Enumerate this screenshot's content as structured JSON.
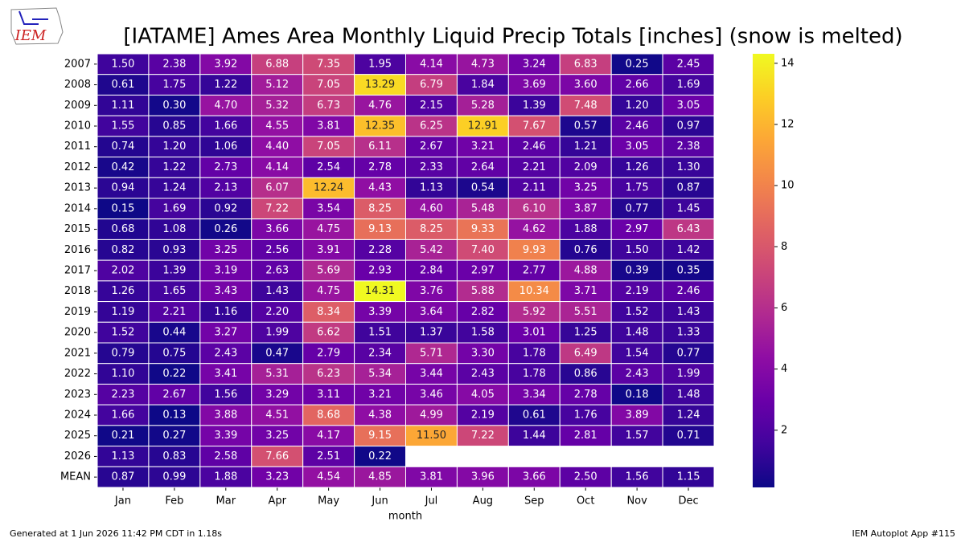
{
  "logo_text": "IEM",
  "footer_left": "Generated at 1 Jun 2026 11:42 PM CDT in 1.18s",
  "footer_right": "IEM Autoplot App #115",
  "chart_data": {
    "type": "heatmap",
    "title": "[IATAME] Ames Area Monthly Liquid Precip Totals [inches] (snow is melted)",
    "x_label": "month",
    "categories": [
      "Jan",
      "Feb",
      "Mar",
      "Apr",
      "May",
      "Jun",
      "Jul",
      "Aug",
      "Sep",
      "Oct",
      "Nov",
      "Dec"
    ],
    "colormap": "plasma",
    "zlim": [
      0.13,
      14.31
    ],
    "zticks": [
      2,
      4,
      6,
      8,
      10,
      12,
      14
    ],
    "series": [
      {
        "name": "2007",
        "values": [
          1.5,
          2.38,
          3.92,
          6.88,
          7.35,
          1.95,
          4.14,
          4.73,
          3.24,
          6.83,
          0.25,
          2.45
        ],
        "value_labels": [
          "1.50",
          "2.38",
          "3.92",
          "6.88",
          "7.35",
          "1.95",
          "4.14",
          "4.73",
          "3.24",
          "6.83",
          "0.25",
          "2.45"
        ]
      },
      {
        "name": "2008",
        "values": [
          0.61,
          1.75,
          1.22,
          5.12,
          7.05,
          13.29,
          6.79,
          1.84,
          3.69,
          3.6,
          2.66,
          1.69
        ],
        "value_labels": [
          "0.61",
          "1.75",
          "1.22",
          "5.12",
          "7.05",
          "13.29",
          "6.79",
          "1.84",
          "3.69",
          "3.60",
          "2.66",
          "1.69"
        ]
      },
      {
        "name": "2009",
        "values": [
          1.11,
          0.3,
          4.7,
          5.32,
          6.73,
          4.76,
          2.15,
          5.28,
          1.39,
          7.48,
          1.2,
          3.05
        ],
        "value_labels": [
          "1.11",
          "0.30",
          "4.70",
          "5.32",
          "6.73",
          "4.76",
          "2.15",
          "5.28",
          "1.39",
          "7.48",
          "1.20",
          "3.05"
        ]
      },
      {
        "name": "2010",
        "values": [
          1.55,
          0.85,
          1.66,
          4.55,
          3.81,
          12.35,
          6.25,
          12.91,
          7.67,
          0.57,
          2.46,
          0.97
        ],
        "value_labels": [
          "1.55",
          "0.85",
          "1.66",
          "4.55",
          "3.81",
          "12.35",
          "6.25",
          "12.91",
          "7.67",
          "0.57",
          "2.46",
          "0.97"
        ]
      },
      {
        "name": "2011",
        "values": [
          0.74,
          1.2,
          1.06,
          4.4,
          7.05,
          6.11,
          2.67,
          3.21,
          2.46,
          1.21,
          3.05,
          2.38
        ],
        "value_labels": [
          "0.74",
          "1.20",
          "1.06",
          "4.40",
          "7.05",
          "6.11",
          "2.67",
          "3.21",
          "2.46",
          "1.21",
          "3.05",
          "2.38"
        ]
      },
      {
        "name": "2012",
        "values": [
          0.42,
          1.22,
          2.73,
          4.14,
          2.54,
          2.78,
          2.33,
          2.64,
          2.21,
          2.09,
          1.26,
          1.3
        ],
        "value_labels": [
          "0.42",
          "1.22",
          "2.73",
          "4.14",
          "2.54",
          "2.78",
          "2.33",
          "2.64",
          "2.21",
          "2.09",
          "1.26",
          "1.30"
        ]
      },
      {
        "name": "2013",
        "values": [
          0.94,
          1.24,
          2.13,
          6.07,
          12.24,
          4.43,
          1.13,
          0.54,
          2.11,
          3.25,
          1.75,
          0.87
        ],
        "value_labels": [
          "0.94",
          "1.24",
          "2.13",
          "6.07",
          "12.24",
          "4.43",
          "1.13",
          "0.54",
          "2.11",
          "3.25",
          "1.75",
          "0.87"
        ]
      },
      {
        "name": "2014",
        "values": [
          0.15,
          1.69,
          0.92,
          7.22,
          3.54,
          8.25,
          4.6,
          5.48,
          6.1,
          3.87,
          0.77,
          1.45
        ],
        "value_labels": [
          "0.15",
          "1.69",
          "0.92",
          "7.22",
          "3.54",
          "8.25",
          "4.60",
          "5.48",
          "6.10",
          "3.87",
          "0.77",
          "1.45"
        ]
      },
      {
        "name": "2015",
        "values": [
          0.68,
          1.08,
          0.26,
          3.66,
          4.75,
          9.13,
          8.25,
          9.33,
          4.62,
          1.88,
          2.97,
          6.43
        ],
        "value_labels": [
          "0.68",
          "1.08",
          "0.26",
          "3.66",
          "4.75",
          "9.13",
          "8.25",
          "9.33",
          "4.62",
          "1.88",
          "2.97",
          "6.43"
        ]
      },
      {
        "name": "2016",
        "values": [
          0.82,
          0.93,
          3.25,
          2.56,
          3.91,
          2.28,
          5.42,
          7.4,
          9.93,
          0.76,
          1.5,
          1.42
        ],
        "value_labels": [
          "0.82",
          "0.93",
          "3.25",
          "2.56",
          "3.91",
          "2.28",
          "5.42",
          "7.40",
          "9.93",
          "0.76",
          "1.50",
          "1.42"
        ]
      },
      {
        "name": "2017",
        "values": [
          2.02,
          1.39,
          3.19,
          2.63,
          5.69,
          2.93,
          2.84,
          2.97,
          2.77,
          4.88,
          0.39,
          0.35
        ],
        "value_labels": [
          "2.02",
          "1.39",
          "3.19",
          "2.63",
          "5.69",
          "2.93",
          "2.84",
          "2.97",
          "2.77",
          "4.88",
          "0.39",
          "0.35"
        ]
      },
      {
        "name": "2018",
        "values": [
          1.26,
          1.65,
          3.43,
          1.43,
          4.75,
          14.31,
          3.76,
          5.88,
          10.34,
          3.71,
          2.19,
          2.46
        ],
        "value_labels": [
          "1.26",
          "1.65",
          "3.43",
          "1.43",
          "4.75",
          "14.31",
          "3.76",
          "5.88",
          "10.34",
          "3.71",
          "2.19",
          "2.46"
        ]
      },
      {
        "name": "2019",
        "values": [
          1.19,
          2.21,
          1.16,
          2.2,
          8.34,
          3.39,
          3.64,
          2.82,
          5.92,
          5.51,
          1.52,
          1.43
        ],
        "value_labels": [
          "1.19",
          "2.21",
          "1.16",
          "2.20",
          "8.34",
          "3.39",
          "3.64",
          "2.82",
          "5.92",
          "5.51",
          "1.52",
          "1.43"
        ]
      },
      {
        "name": "2020",
        "values": [
          1.52,
          0.44,
          3.27,
          1.99,
          6.62,
          1.51,
          1.37,
          1.58,
          3.01,
          1.25,
          1.48,
          1.33
        ],
        "value_labels": [
          "1.52",
          "0.44",
          "3.27",
          "1.99",
          "6.62",
          "1.51",
          "1.37",
          "1.58",
          "3.01",
          "1.25",
          "1.48",
          "1.33"
        ]
      },
      {
        "name": "2021",
        "values": [
          0.79,
          0.75,
          2.43,
          0.47,
          2.79,
          2.34,
          5.71,
          3.3,
          1.78,
          6.49,
          1.54,
          0.77
        ],
        "value_labels": [
          "0.79",
          "0.75",
          "2.43",
          "0.47",
          "2.79",
          "2.34",
          "5.71",
          "3.30",
          "1.78",
          "6.49",
          "1.54",
          "0.77"
        ]
      },
      {
        "name": "2022",
        "values": [
          1.1,
          0.22,
          3.41,
          5.31,
          6.23,
          5.34,
          3.44,
          2.43,
          1.78,
          0.86,
          2.43,
          1.99
        ],
        "value_labels": [
          "1.10",
          "0.22",
          "3.41",
          "5.31",
          "6.23",
          "5.34",
          "3.44",
          "2.43",
          "1.78",
          "0.86",
          "2.43",
          "1.99"
        ]
      },
      {
        "name": "2023",
        "values": [
          2.23,
          2.67,
          1.56,
          3.29,
          3.11,
          3.21,
          3.46,
          4.05,
          3.34,
          2.78,
          0.18,
          1.48
        ],
        "value_labels": [
          "2.23",
          "2.67",
          "1.56",
          "3.29",
          "3.11",
          "3.21",
          "3.46",
          "4.05",
          "3.34",
          "2.78",
          "0.18",
          "1.48"
        ]
      },
      {
        "name": "2024",
        "values": [
          1.66,
          0.13,
          3.88,
          4.51,
          8.68,
          4.38,
          4.99,
          2.19,
          0.61,
          1.76,
          3.89,
          1.24
        ],
        "value_labels": [
          "1.66",
          "0.13",
          "3.88",
          "4.51",
          "8.68",
          "4.38",
          "4.99",
          "2.19",
          "0.61",
          "1.76",
          "3.89",
          "1.24"
        ]
      },
      {
        "name": "2025",
        "values": [
          0.21,
          0.27,
          3.39,
          3.25,
          4.17,
          9.15,
          11.5,
          7.22,
          1.44,
          2.81,
          1.57,
          0.71
        ],
        "value_labels": [
          "0.21",
          "0.27",
          "3.39",
          "3.25",
          "4.17",
          "9.15",
          "11.50",
          "7.22",
          "1.44",
          "2.81",
          "1.57",
          "0.71"
        ]
      },
      {
        "name": "2026",
        "values": [
          1.13,
          0.83,
          2.58,
          7.66,
          2.51,
          0.22,
          null,
          null,
          null,
          null,
          null,
          null
        ],
        "value_labels": [
          "1.13",
          "0.83",
          "2.58",
          "7.66",
          "2.51",
          "0.22",
          null,
          null,
          null,
          null,
          null,
          null
        ]
      },
      {
        "name": "MEAN",
        "values": [
          0.87,
          0.99,
          1.88,
          3.23,
          4.54,
          4.85,
          3.81,
          3.96,
          3.66,
          2.5,
          1.56,
          1.15
        ],
        "value_labels": [
          "0.87",
          "0.99",
          "1.88",
          "3.23",
          "4.54",
          "4.85",
          "3.81",
          "3.96",
          "3.66",
          "2.50",
          "1.56",
          "1.15"
        ]
      }
    ]
  }
}
